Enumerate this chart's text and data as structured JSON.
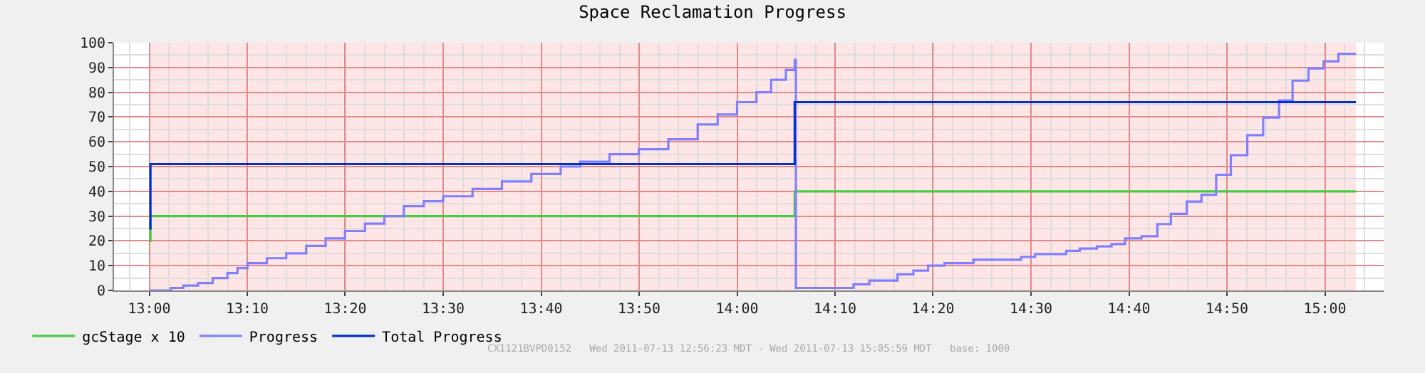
{
  "chart_data": {
    "type": "step",
    "title": "Space Reclamation Progress",
    "xlim": [
      12.94,
      15.1
    ],
    "xticks": [
      {
        "value": 13.0,
        "label": "13:00"
      },
      {
        "value": 13.1667,
        "label": "13:10"
      },
      {
        "value": 13.3333,
        "label": "13:20"
      },
      {
        "value": 13.5,
        "label": "13:30"
      },
      {
        "value": 13.6667,
        "label": "13:40"
      },
      {
        "value": 13.8333,
        "label": "13:50"
      },
      {
        "value": 14.0,
        "label": "14:00"
      },
      {
        "value": 14.1667,
        "label": "14:10"
      },
      {
        "value": 14.3333,
        "label": "14:20"
      },
      {
        "value": 14.5,
        "label": "14:30"
      },
      {
        "value": 14.6667,
        "label": "14:40"
      },
      {
        "value": 14.8333,
        "label": "14:50"
      },
      {
        "value": 15.0,
        "label": "15:00"
      }
    ],
    "ylim": [
      0,
      100
    ],
    "yticks": [
      0,
      10,
      20,
      30,
      40,
      50,
      60,
      70,
      80,
      90,
      100
    ],
    "grid": true,
    "legend": "bottom left",
    "marker": "none",
    "line_style": "solid",
    "bands": [
      {
        "axis": "x",
        "from": 13.0,
        "to": 15.053,
        "label": null,
        "color": "#ffdddd"
      }
    ],
    "series": [
      {
        "name": "gcStage x 10",
        "color": "#44cc44",
        "x": [
          13.0,
          13.002,
          14.098,
          15.053
        ],
        "values": [
          20,
          30,
          40,
          40
        ]
      },
      {
        "name": "Progress",
        "color": "#8080ff",
        "x": [
          13.0,
          13.037,
          13.058,
          13.083,
          13.108,
          13.133,
          13.15,
          13.167,
          13.2,
          13.233,
          13.267,
          13.3,
          13.333,
          13.367,
          13.4,
          13.433,
          13.467,
          13.5,
          13.55,
          13.6,
          13.65,
          13.7,
          13.733,
          13.783,
          13.833,
          13.883,
          13.933,
          13.967,
          14.0,
          14.033,
          14.058,
          14.083,
          14.098,
          14.1,
          14.198,
          14.225,
          14.273,
          14.3,
          14.325,
          14.353,
          14.402,
          14.483,
          14.507,
          14.56,
          14.583,
          14.612,
          14.637,
          14.66,
          14.688,
          14.715,
          14.738,
          14.765,
          14.79,
          14.815,
          14.84,
          14.868,
          14.895,
          14.922,
          14.945,
          14.972,
          14.998,
          15.023,
          15.053
        ],
        "values": [
          0,
          1,
          2,
          3,
          5,
          7,
          9,
          11,
          13,
          15,
          18,
          21,
          24,
          27,
          30,
          34,
          36,
          38,
          41,
          44,
          47,
          50,
          52,
          55,
          57,
          61,
          67,
          71,
          76,
          80,
          85,
          89,
          93,
          1,
          2.5,
          4,
          6.5,
          8,
          10,
          11,
          12.4,
          13.5,
          14.7,
          16,
          16.9,
          17.8,
          18.7,
          21,
          21.9,
          26.8,
          30.9,
          35.9,
          38.6,
          46.7,
          54.6,
          62.7,
          69.8,
          76.7,
          84.7,
          89.6,
          92.5,
          95.5,
          95.5
        ]
      },
      {
        "name": "Total Progress",
        "color": "#0033cc",
        "x": [
          13.0,
          13.002,
          14.098,
          15.053
        ],
        "values": [
          25,
          51,
          76,
          76
        ]
      }
    ],
    "annotations": [
      "CX1121BVPD0152   Wed 2011-07-13 12:56:23 MDT - Wed 2011-07-13 15:05:59 MDT   base: 1000"
    ]
  }
}
